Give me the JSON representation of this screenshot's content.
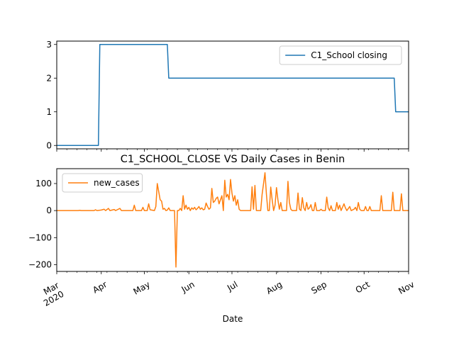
{
  "chart_data": [
    {
      "type": "line",
      "title": "",
      "xlabel": "",
      "ylabel": "",
      "xlim": [
        "2020-03-01",
        "2020-11-01"
      ],
      "ylim": [
        -0.1,
        3.1
      ],
      "yticks": [
        0,
        1,
        2,
        3
      ],
      "legend": "top-right",
      "series": [
        {
          "name": "C1_School closing",
          "color": "#1f77b4",
          "points": [
            [
              "2020-03-01",
              0
            ],
            [
              "2020-03-30",
              0
            ],
            [
              "2020-03-31",
              3
            ],
            [
              "2020-05-17",
              3
            ],
            [
              "2020-05-18",
              2
            ],
            [
              "2020-10-22",
              2
            ],
            [
              "2020-10-23",
              1
            ],
            [
              "2020-11-01",
              1
            ]
          ]
        }
      ]
    },
    {
      "type": "line",
      "title": "C1_SCHOOL_CLOSE VS Daily Cases in Benin",
      "xlabel": "Date",
      "ylabel": "",
      "xlim": [
        "2020-03-01",
        "2020-11-01"
      ],
      "ylim": [
        -225,
        155
      ],
      "yticks": [
        -200,
        -100,
        0,
        100
      ],
      "legend": "top-left",
      "xtick_labels": [
        {
          "label": "Mar\n2020",
          "date": "2020-03-01"
        },
        {
          "label": "Apr",
          "date": "2020-04-01"
        },
        {
          "label": "May",
          "date": "2020-05-01"
        },
        {
          "label": "Jun",
          "date": "2020-06-01"
        },
        {
          "label": "Jul",
          "date": "2020-07-01"
        },
        {
          "label": "Aug",
          "date": "2020-08-01"
        },
        {
          "label": "Sep",
          "date": "2020-09-01"
        },
        {
          "label": "Oct",
          "date": "2020-10-01"
        },
        {
          "label": "Nov",
          "date": "2020-11-01"
        }
      ],
      "series": [
        {
          "name": "new_cases",
          "color": "#ff7f0e",
          "points": [
            [
              "2020-03-01",
              0
            ],
            [
              "2020-03-16",
              0
            ],
            [
              "2020-03-17",
              1
            ],
            [
              "2020-03-18",
              0
            ],
            [
              "2020-03-27",
              0
            ],
            [
              "2020-03-28",
              3
            ],
            [
              "2020-03-29",
              0
            ],
            [
              "2020-04-01",
              2
            ],
            [
              "2020-04-03",
              5
            ],
            [
              "2020-04-04",
              0
            ],
            [
              "2020-04-06",
              8
            ],
            [
              "2020-04-07",
              0
            ],
            [
              "2020-04-10",
              4
            ],
            [
              "2020-04-11",
              0
            ],
            [
              "2020-04-14",
              8
            ],
            [
              "2020-04-15",
              0
            ],
            [
              "2020-04-23",
              0
            ],
            [
              "2020-04-24",
              20
            ],
            [
              "2020-04-25",
              0
            ],
            [
              "2020-04-29",
              0
            ],
            [
              "2020-04-30",
              12
            ],
            [
              "2020-05-01",
              0
            ],
            [
              "2020-05-03",
              0
            ],
            [
              "2020-05-04",
              25
            ],
            [
              "2020-05-05",
              3
            ],
            [
              "2020-05-08",
              0
            ],
            [
              "2020-05-09",
              15
            ],
            [
              "2020-05-10",
              100
            ],
            [
              "2020-05-11",
              70
            ],
            [
              "2020-05-12",
              40
            ],
            [
              "2020-05-13",
              35
            ],
            [
              "2020-05-14",
              5
            ],
            [
              "2020-05-15",
              8
            ],
            [
              "2020-05-16",
              0
            ],
            [
              "2020-05-17",
              2
            ],
            [
              "2020-05-18",
              10
            ],
            [
              "2020-05-19",
              0
            ],
            [
              "2020-05-22",
              0
            ],
            [
              "2020-05-23",
              -209
            ],
            [
              "2020-05-24",
              0
            ],
            [
              "2020-05-25",
              0
            ],
            [
              "2020-05-26",
              8
            ],
            [
              "2020-05-27",
              0
            ],
            [
              "2020-05-28",
              55
            ],
            [
              "2020-05-29",
              5
            ],
            [
              "2020-05-30",
              20
            ],
            [
              "2020-05-31",
              5
            ],
            [
              "2020-06-01",
              12
            ],
            [
              "2020-06-02",
              0
            ],
            [
              "2020-06-03",
              10
            ],
            [
              "2020-06-04",
              5
            ],
            [
              "2020-06-05",
              12
            ],
            [
              "2020-06-06",
              3
            ],
            [
              "2020-06-07",
              8
            ],
            [
              "2020-06-08",
              15
            ],
            [
              "2020-06-09",
              5
            ],
            [
              "2020-06-10",
              10
            ],
            [
              "2020-06-11",
              3
            ],
            [
              "2020-06-12",
              5
            ],
            [
              "2020-06-13",
              28
            ],
            [
              "2020-06-14",
              15
            ],
            [
              "2020-06-15",
              5
            ],
            [
              "2020-06-16",
              10
            ],
            [
              "2020-06-17",
              82
            ],
            [
              "2020-06-18",
              30
            ],
            [
              "2020-06-19",
              35
            ],
            [
              "2020-06-20",
              45
            ],
            [
              "2020-06-21",
              50
            ],
            [
              "2020-06-22",
              25
            ],
            [
              "2020-06-23",
              40
            ],
            [
              "2020-06-24",
              55
            ],
            [
              "2020-06-25",
              0
            ],
            [
              "2020-06-26",
              112
            ],
            [
              "2020-06-27",
              50
            ],
            [
              "2020-06-28",
              60
            ],
            [
              "2020-06-29",
              40
            ],
            [
              "2020-06-30",
              115
            ],
            [
              "2020-07-01",
              65
            ],
            [
              "2020-07-02",
              35
            ],
            [
              "2020-07-03",
              55
            ],
            [
              "2020-07-04",
              20
            ],
            [
              "2020-07-05",
              40
            ],
            [
              "2020-07-06",
              5
            ],
            [
              "2020-07-07",
              0
            ],
            [
              "2020-07-14",
              0
            ],
            [
              "2020-07-15",
              88
            ],
            [
              "2020-07-16",
              5
            ],
            [
              "2020-07-17",
              93
            ],
            [
              "2020-07-18",
              0
            ],
            [
              "2020-07-21",
              0
            ],
            [
              "2020-07-22",
              60
            ],
            [
              "2020-07-23",
              100
            ],
            [
              "2020-07-24",
              140
            ],
            [
              "2020-07-25",
              60
            ],
            [
              "2020-07-26",
              0
            ],
            [
              "2020-07-27",
              0
            ],
            [
              "2020-07-28",
              87
            ],
            [
              "2020-07-29",
              40
            ],
            [
              "2020-07-30",
              0
            ],
            [
              "2020-07-31",
              20
            ],
            [
              "2020-08-01",
              85
            ],
            [
              "2020-08-02",
              40
            ],
            [
              "2020-08-03",
              5
            ],
            [
              "2020-08-04",
              30
            ],
            [
              "2020-08-05",
              0
            ],
            [
              "2020-08-08",
              0
            ],
            [
              "2020-08-09",
              108
            ],
            [
              "2020-08-10",
              30
            ],
            [
              "2020-08-11",
              5
            ],
            [
              "2020-08-12",
              0
            ],
            [
              "2020-08-15",
              0
            ],
            [
              "2020-08-16",
              65
            ],
            [
              "2020-08-17",
              5
            ],
            [
              "2020-08-18",
              0
            ],
            [
              "2020-08-19",
              48
            ],
            [
              "2020-08-20",
              10
            ],
            [
              "2020-08-21",
              0
            ],
            [
              "2020-08-22",
              30
            ],
            [
              "2020-08-23",
              5
            ],
            [
              "2020-08-24",
              10
            ],
            [
              "2020-08-25",
              22
            ],
            [
              "2020-08-26",
              0
            ],
            [
              "2020-08-27",
              0
            ],
            [
              "2020-08-28",
              30
            ],
            [
              "2020-08-29",
              0
            ],
            [
              "2020-08-31",
              0
            ],
            [
              "2020-09-01",
              5
            ],
            [
              "2020-09-02",
              0
            ],
            [
              "2020-09-04",
              0
            ],
            [
              "2020-09-05",
              50
            ],
            [
              "2020-09-06",
              10
            ],
            [
              "2020-09-07",
              0
            ],
            [
              "2020-09-08",
              18
            ],
            [
              "2020-09-09",
              0
            ],
            [
              "2020-09-11",
              0
            ],
            [
              "2020-09-12",
              30
            ],
            [
              "2020-09-13",
              5
            ],
            [
              "2020-09-14",
              20
            ],
            [
              "2020-09-15",
              0
            ],
            [
              "2020-09-17",
              25
            ],
            [
              "2020-09-18",
              10
            ],
            [
              "2020-09-19",
              0
            ],
            [
              "2020-09-21",
              15
            ],
            [
              "2020-09-22",
              0
            ],
            [
              "2020-09-24",
              5
            ],
            [
              "2020-09-25",
              12
            ],
            [
              "2020-09-26",
              0
            ],
            [
              "2020-09-27",
              30
            ],
            [
              "2020-09-28",
              5
            ],
            [
              "2020-09-29",
              0
            ],
            [
              "2020-10-01",
              0
            ],
            [
              "2020-10-02",
              15
            ],
            [
              "2020-10-03",
              0
            ],
            [
              "2020-10-04",
              0
            ],
            [
              "2020-10-05",
              15
            ],
            [
              "2020-10-06",
              0
            ],
            [
              "2020-10-12",
              0
            ],
            [
              "2020-10-13",
              55
            ],
            [
              "2020-10-14",
              0
            ],
            [
              "2020-10-20",
              0
            ],
            [
              "2020-10-21",
              68
            ],
            [
              "2020-10-22",
              0
            ],
            [
              "2020-10-26",
              0
            ],
            [
              "2020-10-27",
              62
            ],
            [
              "2020-10-28",
              0
            ],
            [
              "2020-11-01",
              0
            ]
          ]
        }
      ]
    }
  ]
}
